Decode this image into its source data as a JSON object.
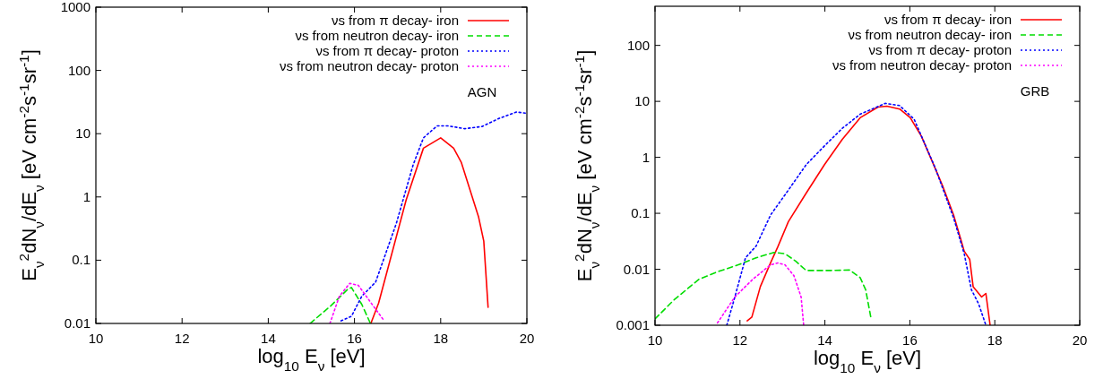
{
  "chart_data": [
    {
      "type": "line",
      "xlabel": "log$_{10}$ E$_{ν}$ [eV]",
      "ylabel": "E$_{ν}$$^{2}$dN$_{ν}$/dE$_{ν}$ [eV cm$^{-2}$s$^{-1}$sr$^{-1}$]",
      "annotations": [
        "AGN"
      ],
      "log": "y",
      "grid": false,
      "legend": "top right",
      "xlim": [
        10,
        20
      ],
      "xticks": [
        10,
        12,
        14,
        16,
        18,
        20
      ],
      "ylim": [
        0.01,
        1000
      ],
      "yticks": [
        0.01,
        0.1,
        1,
        10,
        100,
        1000
      ],
      "series": [
        {
          "name": "νs from π decay- iron",
          "color": "#ff0000",
          "line_style": "solid",
          "x": [
            16.38,
            16.56,
            17.2,
            17.6,
            18.0,
            18.3,
            18.48,
            18.88,
            19.0,
            19.1
          ],
          "values": [
            0.01,
            0.021,
            0.9,
            5.9,
            8.6,
            5.9,
            3.5,
            0.48,
            0.2,
            0.018
          ]
        },
        {
          "name": "νs from neutron decay- iron",
          "color": "#00dd00",
          "line_style": "dashed",
          "x": [
            14.97,
            15.45,
            15.85,
            15.93,
            16.17,
            16.37
          ],
          "values": [
            0.01,
            0.019,
            0.035,
            0.037,
            0.02,
            0.01
          ]
        },
        {
          "name": "νs from π decay- proton",
          "color": "#0000ff",
          "line_style": "dotted",
          "x": [
            15.69,
            15.93,
            16.17,
            16.49,
            16.97,
            17.36,
            17.6,
            17.92,
            18.16,
            18.56,
            18.96,
            19.36,
            19.76,
            20.0
          ],
          "values": [
            0.011,
            0.013,
            0.027,
            0.045,
            0.38,
            3.2,
            8.6,
            13.3,
            13.3,
            12,
            13,
            17.5,
            22,
            21
          ]
        },
        {
          "name": "νs from neutron decay- proton",
          "color": "#ff00ff",
          "line_style": "dotted",
          "x": [
            15.43,
            15.65,
            15.89,
            16.09,
            16.41,
            16.69
          ],
          "values": [
            0.01,
            0.027,
            0.043,
            0.04,
            0.02,
            0.011
          ]
        }
      ]
    },
    {
      "type": "line",
      "xlabel": "log$_{10}$ E$_{ν}$ [eV]",
      "ylabel": "E$_{ν}$$^{2}$dN$_{ν}$/dE$_{ν}$ [eV cm$^{-2}$s$^{-1}$sr$^{-1}$]",
      "annotations": [
        "GRB"
      ],
      "log": "y",
      "grid": false,
      "legend": "top right",
      "xlim": [
        10,
        20
      ],
      "xticks": [
        10,
        12,
        14,
        16,
        18,
        20
      ],
      "ylim": [
        0.001,
        500
      ],
      "yticks": [
        0.001,
        0.01,
        0.1,
        1,
        10,
        100
      ],
      "series": [
        {
          "name": "νs from π decay- iron",
          "color": "#ff0000",
          "line_style": "solid",
          "x": [
            12.17,
            12.28,
            12.48,
            12.72,
            12.89,
            13.14,
            13.56,
            13.99,
            14.41,
            14.83,
            15.25,
            15.46,
            15.76,
            16.01,
            16.27,
            16.52,
            16.77,
            17.03,
            17.2,
            17.28,
            17.41,
            17.49,
            17.69,
            17.79,
            17.89
          ],
          "values": [
            0.0012,
            0.0014,
            0.0049,
            0.013,
            0.025,
            0.071,
            0.23,
            0.74,
            2.1,
            5.1,
            7.9,
            8.2,
            7.3,
            5.1,
            2.4,
            0.87,
            0.31,
            0.093,
            0.034,
            0.021,
            0.015,
            0.0049,
            0.0032,
            0.0037,
            0.001
          ]
        },
        {
          "name": "νs from neutron decay- iron",
          "color": "#00dd00",
          "line_style": "dashed",
          "x": [
            10.0,
            10.44,
            11.03,
            11.45,
            11.96,
            12.38,
            12.8,
            13.06,
            13.31,
            13.56,
            14.07,
            14.58,
            14.83,
            14.96,
            15.08
          ],
          "values": [
            0.0013,
            0.0028,
            0.0066,
            0.0089,
            0.012,
            0.016,
            0.02,
            0.019,
            0.014,
            0.0095,
            0.0095,
            0.0097,
            0.0071,
            0.0043,
            0.0014
          ]
        },
        {
          "name": "νs from π decay- proton",
          "color": "#0000ff",
          "line_style": "dotted",
          "x": [
            11.69,
            11.88,
            12.13,
            12.38,
            12.72,
            13.14,
            13.56,
            13.99,
            14.41,
            14.83,
            15.42,
            15.76,
            16.1,
            16.6,
            17.03,
            17.28,
            17.45,
            17.62,
            17.79
          ],
          "values": [
            0.001,
            0.0032,
            0.016,
            0.026,
            0.093,
            0.26,
            0.74,
            1.6,
            3.3,
            5.9,
            9.2,
            8.4,
            4.8,
            0.64,
            0.083,
            0.019,
            0.0043,
            0.0024,
            0.001
          ]
        },
        {
          "name": "νs from neutron decay- proton",
          "color": "#ff00ff",
          "line_style": "dotted",
          "x": [
            11.47,
            11.88,
            12.3,
            12.72,
            12.89,
            13.06,
            13.27,
            13.44,
            13.5
          ],
          "values": [
            0.0011,
            0.0032,
            0.0066,
            0.012,
            0.013,
            0.012,
            0.0077,
            0.0032,
            0.001
          ]
        }
      ]
    }
  ]
}
